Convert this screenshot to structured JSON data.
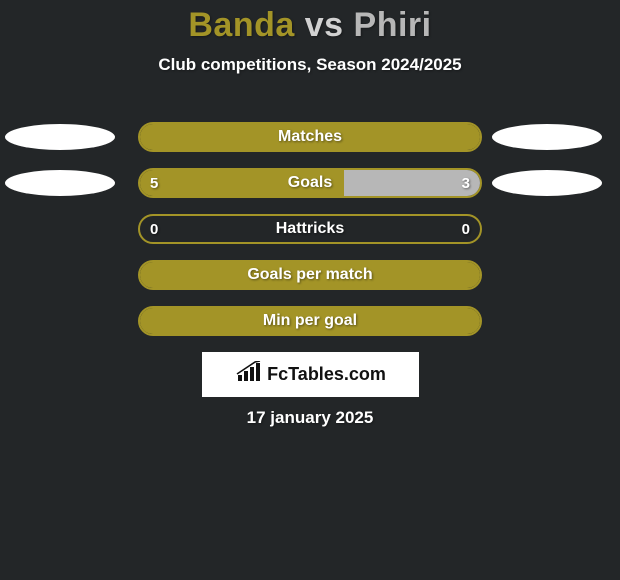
{
  "colors": {
    "background": "#232628",
    "title_p1": "#a39427",
    "title_vs": "#d1d1d1",
    "title_p2": "#b7b7b7",
    "subtitle": "#ffffff",
    "bar_border": "#a39427",
    "bar_fill_left": "#a39427",
    "bar_fill_right": "#b7b7b7",
    "bar_label": "#ffffff",
    "bar_value": "#ffffff",
    "ellipse_left": "#ffffff",
    "ellipse_right": "#ffffff",
    "brand_bg": "#ffffff",
    "brand_text": "#111111",
    "date": "#ffffff"
  },
  "title": {
    "player1": "Banda",
    "vs": "vs",
    "player2": "Phiri"
  },
  "subtitle": "Club competitions, Season 2024/2025",
  "rows": [
    {
      "label": "Matches",
      "left_value": "",
      "right_value": "",
      "left_pct": 100,
      "right_pct": 0,
      "show_left_ellipse": true,
      "show_right_ellipse": true,
      "show_left_value": false,
      "show_right_value": false
    },
    {
      "label": "Goals",
      "left_value": "5",
      "right_value": "3",
      "left_pct": 60,
      "right_pct": 40,
      "show_left_ellipse": true,
      "show_right_ellipse": true,
      "show_left_value": true,
      "show_right_value": true
    },
    {
      "label": "Hattricks",
      "left_value": "0",
      "right_value": "0",
      "left_pct": 0,
      "right_pct": 0,
      "show_left_ellipse": false,
      "show_right_ellipse": false,
      "show_left_value": true,
      "show_right_value": true
    },
    {
      "label": "Goals per match",
      "left_value": "",
      "right_value": "",
      "left_pct": 100,
      "right_pct": 0,
      "show_left_ellipse": false,
      "show_right_ellipse": false,
      "show_left_value": false,
      "show_right_value": false
    },
    {
      "label": "Min per goal",
      "left_value": "",
      "right_value": "",
      "left_pct": 100,
      "right_pct": 0,
      "show_left_ellipse": false,
      "show_right_ellipse": false,
      "show_left_value": false,
      "show_right_value": false
    }
  ],
  "brand": {
    "text": "FcTables.com"
  },
  "date": "17 january 2025"
}
